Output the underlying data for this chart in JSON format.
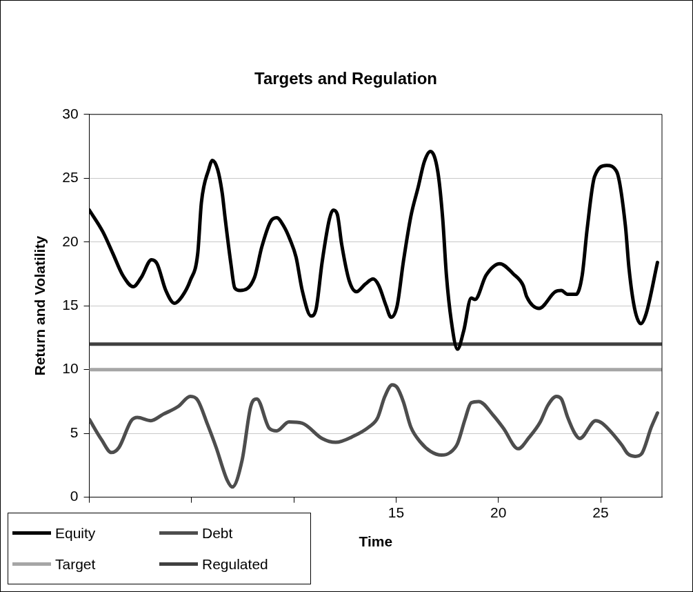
{
  "chart_data": {
    "type": "line",
    "title": "Targets and Regulation",
    "xlabel": "Time",
    "ylabel": "Return and Volatility",
    "xlim": [
      0,
      28
    ],
    "xticks": [
      {
        "value": 0,
        "label": null
      },
      {
        "value": 5,
        "label": null
      },
      {
        "value": 10,
        "label": null
      },
      15,
      20,
      25
    ],
    "ylim": [
      0,
      30
    ],
    "yticks": [
      0,
      5,
      10,
      15,
      20,
      25,
      30
    ],
    "grid": "y",
    "legend": "bottom left",
    "marker": "none",
    "line_style": "solid",
    "series": [
      {
        "name": "Equity",
        "color": "#000000",
        "x": [
          0,
          0.66,
          1.15,
          1.63,
          2.15,
          2.53,
          3.04,
          3.31,
          3.74,
          4.16,
          4.52,
          4.94,
          5.3,
          5.48,
          5.84,
          6.02,
          6.27,
          6.5,
          6.63,
          6.93,
          7.11,
          7.37,
          8.07,
          8.43,
          8.86,
          9.16,
          9.52,
          9.81,
          10.11,
          10.41,
          10.84,
          11.08,
          11.38,
          11.74,
          11.92,
          12.12,
          12.34,
          12.7,
          13.06,
          13.49,
          13.88,
          14.15,
          14.51,
          14.75,
          15.05,
          15.35,
          15.72,
          16.08,
          16.38,
          16.68,
          17.04,
          17.28,
          17.46,
          17.7,
          18.0,
          18.3,
          18.67,
          18.86,
          19.4,
          20.07,
          20.73,
          21.21,
          21.39,
          21.99,
          22.78,
          23.08,
          23.38,
          23.8,
          24.1,
          24.34,
          24.7,
          25.3,
          25.79,
          26.21,
          26.39,
          26.66,
          26.97,
          27.23,
          27.78
        ],
        "values": [
          22.5,
          20.8,
          19.1,
          17.4,
          16.5,
          17.2,
          18.6,
          18.3,
          16.2,
          15.2,
          15.7,
          17.0,
          19.1,
          23.1,
          25.7,
          26.4,
          25.7,
          23.8,
          22.0,
          18.2,
          16.4,
          16.2,
          17.2,
          19.6,
          21.6,
          21.9,
          21.2,
          20.2,
          18.8,
          16.2,
          14.2,
          14.7,
          18.4,
          21.8,
          22.5,
          22.2,
          19.8,
          17.0,
          16.1,
          16.7,
          17.1,
          16.6,
          15.0,
          14.1,
          15.0,
          18.4,
          22.0,
          24.3,
          26.3,
          27.1,
          25.5,
          21.8,
          17.4,
          13.8,
          11.6,
          13.0,
          15.6,
          15.5,
          17.4,
          18.3,
          17.5,
          16.6,
          15.7,
          14.8,
          16.1,
          16.2,
          15.9,
          15.9,
          17.4,
          21.0,
          25.1,
          26.0,
          25.5,
          21.3,
          17.9,
          14.8,
          13.6,
          14.4,
          18.4
        ]
      },
      {
        "name": "Debt",
        "color": "#4d4d4d",
        "x": [
          0,
          0.6,
          1.08,
          1.45,
          2.05,
          2.35,
          3.01,
          3.61,
          4.34,
          4.94,
          5.3,
          5.78,
          6.2,
          6.75,
          6.99,
          7.47,
          7.89,
          8.19,
          8.8,
          9.16,
          9.76,
          10.41,
          11.38,
          12.04,
          12.94,
          13.67,
          14.09,
          14.45,
          14.81,
          15.05,
          15.35,
          15.72,
          16.2,
          16.68,
          17.22,
          17.64,
          18.0,
          18.37,
          18.67,
          19.04,
          19.76,
          20.25,
          20.97,
          21.51,
          22.05,
          22.42,
          22.84,
          23.08,
          23.38,
          23.74,
          23.98,
          24.76,
          25.07,
          26.03,
          26.33,
          26.69,
          27.0,
          27.48,
          27.78
        ],
        "values": [
          6.1,
          4.5,
          3.5,
          3.9,
          6.0,
          6.25,
          6.0,
          6.5,
          7.1,
          7.9,
          7.6,
          5.7,
          3.9,
          1.3,
          0.8,
          2.9,
          7.1,
          7.7,
          5.4,
          5.2,
          5.9,
          5.8,
          4.6,
          4.3,
          4.8,
          5.5,
          6.2,
          7.9,
          8.8,
          8.6,
          7.5,
          5.5,
          4.3,
          3.6,
          3.3,
          3.5,
          4.2,
          6.1,
          7.4,
          7.5,
          6.4,
          5.4,
          3.8,
          4.7,
          5.9,
          7.2,
          7.9,
          7.7,
          6.3,
          5.0,
          4.6,
          6.0,
          5.8,
          4.1,
          3.4,
          3.2,
          3.4,
          5.5,
          6.6
        ]
      },
      {
        "name": "Target",
        "color": "#a6a6a6",
        "x": [
          0,
          28
        ],
        "values": [
          10,
          10
        ]
      },
      {
        "name": "Regulated",
        "color": "#404040",
        "x": [
          0,
          28
        ],
        "values": [
          12,
          12
        ]
      }
    ]
  }
}
